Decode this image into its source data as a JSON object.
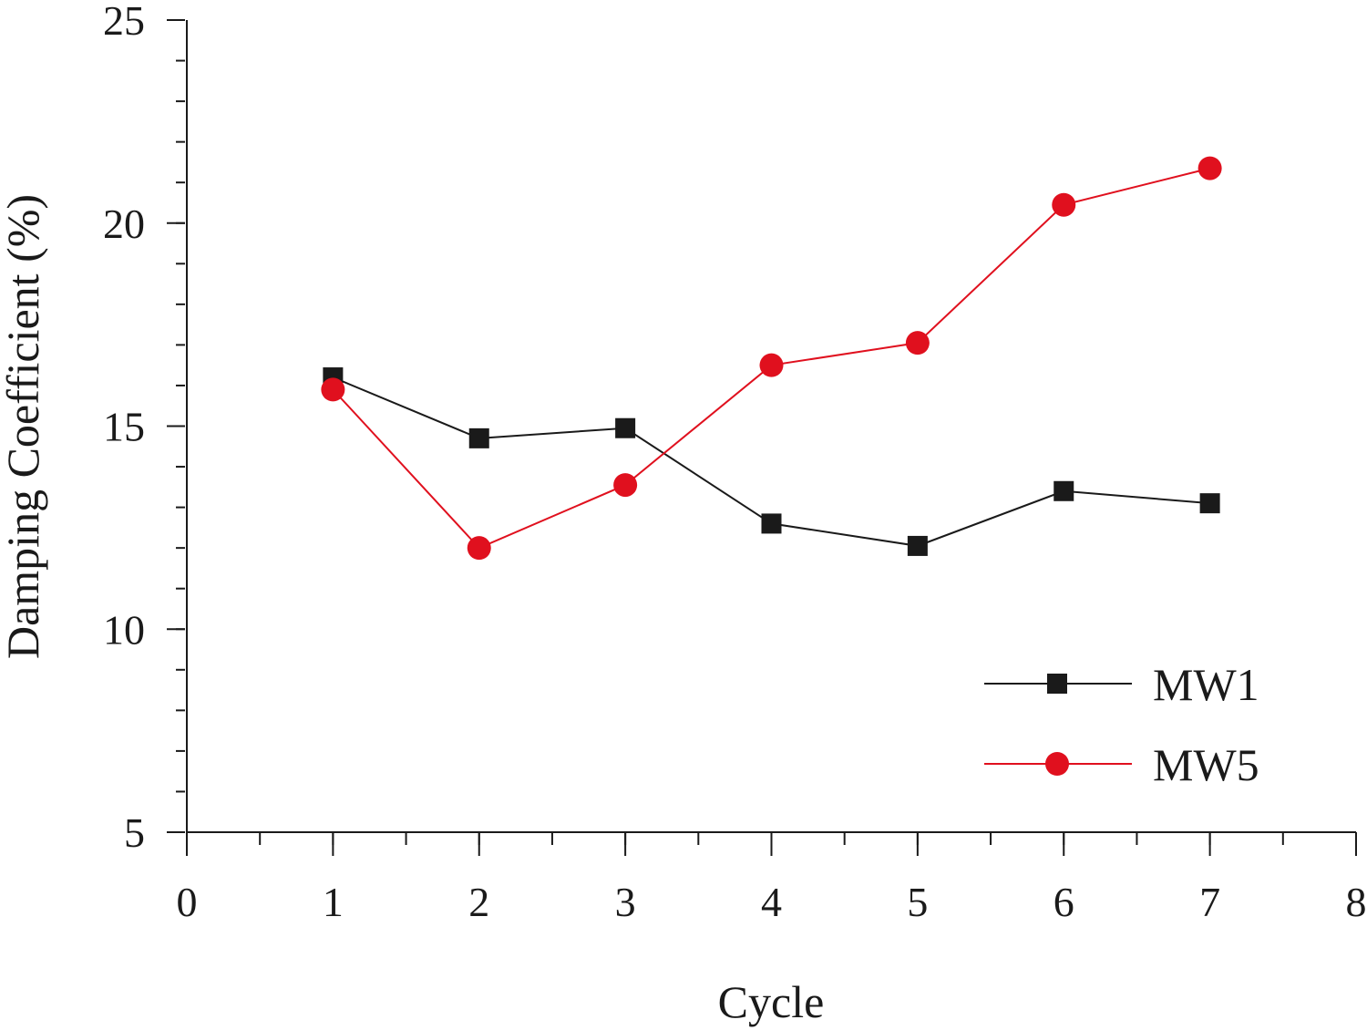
{
  "chart_data": {
    "type": "line",
    "xlabel": "Cycle",
    "ylabel": "Damping Coefficient (%)",
    "xlim": [
      0,
      8
    ],
    "ylim": [
      5,
      25
    ],
    "x_ticks": [
      0,
      1,
      2,
      3,
      4,
      5,
      6,
      7,
      8
    ],
    "y_ticks": [
      5,
      10,
      15,
      20,
      25
    ],
    "grid": false,
    "legend_position": "bottom-right",
    "series": [
      {
        "name": "MW1",
        "color": "#1a1a1a",
        "marker": "square",
        "x": [
          1,
          2,
          3,
          4,
          5,
          6,
          7
        ],
        "y": [
          16.2,
          14.7,
          14.95,
          12.6,
          12.05,
          13.4,
          13.1
        ]
      },
      {
        "name": "MW5",
        "color": "#e0101e",
        "marker": "circle",
        "x": [
          1,
          2,
          3,
          4,
          5,
          6,
          7
        ],
        "y": [
          15.9,
          12.0,
          13.55,
          16.5,
          17.05,
          20.45,
          21.35
        ]
      }
    ]
  }
}
